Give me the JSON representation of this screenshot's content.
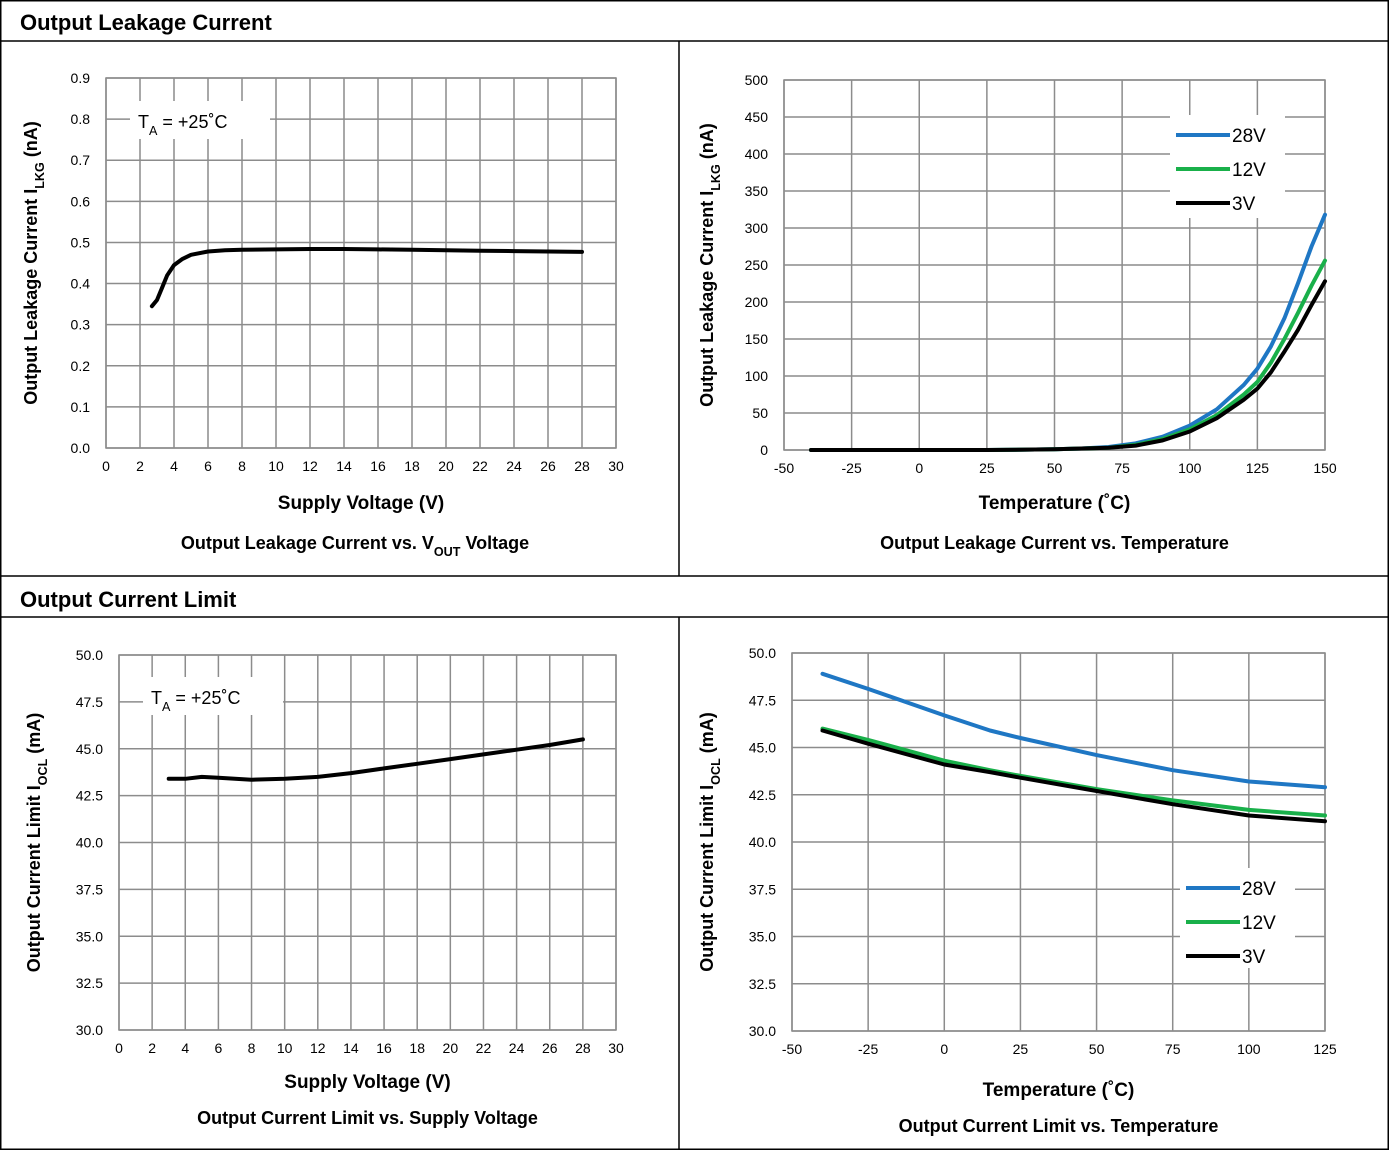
{
  "sections": [
    {
      "title": "Output Leakage Current"
    },
    {
      "title": "Output Current Limit"
    }
  ],
  "colors": {
    "s28V": "#1f77c4",
    "s12V": "#19b04a",
    "s3V": "#000000",
    "grid": "#8c8c8c"
  },
  "chart_data": [
    {
      "id": "leak-vs-voltage",
      "type": "line",
      "title": "",
      "caption": "Output Leakage Current vs. V",
      "caption_sub": "OUT",
      "caption_tail": " Voltage",
      "xlabel": "Supply Voltage (V)",
      "ylabel": "Output Leakage Current I",
      "ylabel_sub": "LKG",
      "ylabel_tail": " (nA)",
      "xlim": [
        0,
        30
      ],
      "ylim": [
        0,
        0.9
      ],
      "xticks": [
        "0",
        "2",
        "4",
        "6",
        "8",
        "10",
        "12",
        "14",
        "16",
        "18",
        "20",
        "22",
        "24",
        "26",
        "28",
        "30"
      ],
      "yticks": [
        "0.0",
        "0.1",
        "0.2",
        "0.3",
        "0.4",
        "0.5",
        "0.6",
        "0.7",
        "0.8",
        "0.9"
      ],
      "annotation": {
        "main": "T",
        "sub": "A",
        "tail": " = +25˚C"
      },
      "grid": true,
      "series": [
        {
          "color_key": "s3V",
          "x": [
            2.7,
            3.0,
            3.3,
            3.6,
            4.0,
            4.5,
            5.0,
            6.0,
            7.0,
            8.0,
            10,
            12,
            14,
            16,
            18,
            20,
            22,
            24,
            26,
            28
          ],
          "y": [
            0.345,
            0.36,
            0.39,
            0.42,
            0.445,
            0.46,
            0.47,
            0.478,
            0.481,
            0.482,
            0.483,
            0.484,
            0.484,
            0.483,
            0.482,
            0.481,
            0.48,
            0.479,
            0.478,
            0.477
          ]
        }
      ]
    },
    {
      "id": "leak-vs-temp",
      "type": "line",
      "title": "",
      "caption": "Output Leakage Current vs. Temperature",
      "xlabel": "Temperature (˚C)",
      "ylabel": "Output Leakage Current I",
      "ylabel_sub": "LKG",
      "ylabel_tail": " (nA)",
      "xlim": [
        -50,
        150
      ],
      "ylim": [
        0,
        500
      ],
      "xticks": [
        "-50",
        "-25",
        "0",
        "25",
        "50",
        "75",
        "100",
        "125",
        "150"
      ],
      "yticks": [
        "0",
        "50",
        "100",
        "150",
        "200",
        "250",
        "300",
        "350",
        "400",
        "450",
        "500"
      ],
      "legend_position": "top-right",
      "grid": true,
      "series": [
        {
          "name": "28V",
          "color_key": "s28V",
          "x": [
            -40,
            -25,
            0,
            25,
            50,
            60,
            70,
            80,
            90,
            100,
            110,
            120,
            125,
            130,
            135,
            140,
            145,
            150
          ],
          "y": [
            0,
            0,
            0,
            0,
            1,
            2,
            4,
            9,
            18,
            33,
            55,
            88,
            110,
            140,
            178,
            225,
            275,
            318
          ]
        },
        {
          "name": "12V",
          "color_key": "s12V",
          "x": [
            -40,
            -25,
            0,
            25,
            50,
            60,
            70,
            80,
            90,
            100,
            110,
            120,
            125,
            130,
            135,
            140,
            145,
            150
          ],
          "y": [
            0,
            0,
            0,
            0,
            1,
            2,
            3,
            7,
            15,
            28,
            47,
            75,
            92,
            118,
            150,
            185,
            222,
            256
          ]
        },
        {
          "name": "3V",
          "color_key": "s3V",
          "x": [
            -40,
            -25,
            0,
            25,
            50,
            60,
            70,
            80,
            90,
            100,
            110,
            120,
            125,
            130,
            135,
            140,
            145,
            150
          ],
          "y": [
            0,
            0,
            0,
            0,
            1,
            2,
            3,
            6,
            13,
            25,
            43,
            68,
            83,
            105,
            133,
            162,
            196,
            228
          ]
        }
      ]
    },
    {
      "id": "ocl-vs-voltage",
      "type": "line",
      "title": "",
      "caption": "Output Current Limit vs. Supply Voltage",
      "xlabel": "Supply Voltage (V)",
      "ylabel": "Output Current Limit I",
      "ylabel_sub": "OCL",
      "ylabel_tail": " (mA)",
      "xlim": [
        0,
        30
      ],
      "ylim": [
        30,
        50
      ],
      "xticks": [
        "0",
        "2",
        "4",
        "6",
        "8",
        "10",
        "12",
        "14",
        "16",
        "18",
        "20",
        "22",
        "24",
        "26",
        "28",
        "30"
      ],
      "yticks": [
        "30.0",
        "32.5",
        "35.0",
        "37.5",
        "40.0",
        "42.5",
        "45.0",
        "47.5",
        "50.0"
      ],
      "annotation": {
        "main": "T",
        "sub": "A",
        "tail": " = +25˚C"
      },
      "grid": true,
      "series": [
        {
          "color_key": "s3V",
          "x": [
            3,
            4,
            5,
            6,
            8,
            10,
            12,
            14,
            16,
            18,
            20,
            22,
            24,
            26,
            28
          ],
          "y": [
            43.4,
            43.4,
            43.5,
            43.45,
            43.35,
            43.4,
            43.5,
            43.7,
            43.95,
            44.2,
            44.45,
            44.7,
            44.95,
            45.2,
            45.5
          ]
        }
      ]
    },
    {
      "id": "ocl-vs-temp",
      "type": "line",
      "title": "",
      "caption": "Output Current Limit vs. Temperature",
      "xlabel": "Temperature (˚C)",
      "ylabel": "Output Current Limit I",
      "ylabel_sub": "OCL",
      "ylabel_tail": " (mA)",
      "xlim": [
        -50,
        125
      ],
      "ylim": [
        30,
        50
      ],
      "xticks": [
        "-50",
        "-25",
        "0",
        "25",
        "50",
        "75",
        "100",
        "125"
      ],
      "yticks": [
        "30.0",
        "32.5",
        "35.0",
        "37.5",
        "40.0",
        "42.5",
        "45.0",
        "47.5",
        "50.0"
      ],
      "legend_position": "center-right",
      "grid": true,
      "series": [
        {
          "name": "28V",
          "color_key": "s28V",
          "x": [
            -40,
            -25,
            0,
            15,
            25,
            50,
            75,
            100,
            125
          ],
          "y": [
            48.9,
            48.1,
            46.7,
            45.9,
            45.5,
            44.6,
            43.8,
            43.2,
            42.9
          ]
        },
        {
          "name": "12V",
          "color_key": "s12V",
          "x": [
            -40,
            -25,
            0,
            15,
            25,
            50,
            75,
            100,
            125
          ],
          "y": [
            46.0,
            45.4,
            44.3,
            43.8,
            43.5,
            42.8,
            42.2,
            41.7,
            41.4
          ]
        },
        {
          "name": "3V",
          "color_key": "s3V",
          "x": [
            -40,
            -25,
            0,
            15,
            25,
            50,
            75,
            100,
            125
          ],
          "y": [
            45.9,
            45.2,
            44.1,
            43.7,
            43.4,
            42.7,
            42.0,
            41.4,
            41.1
          ]
        }
      ]
    }
  ]
}
